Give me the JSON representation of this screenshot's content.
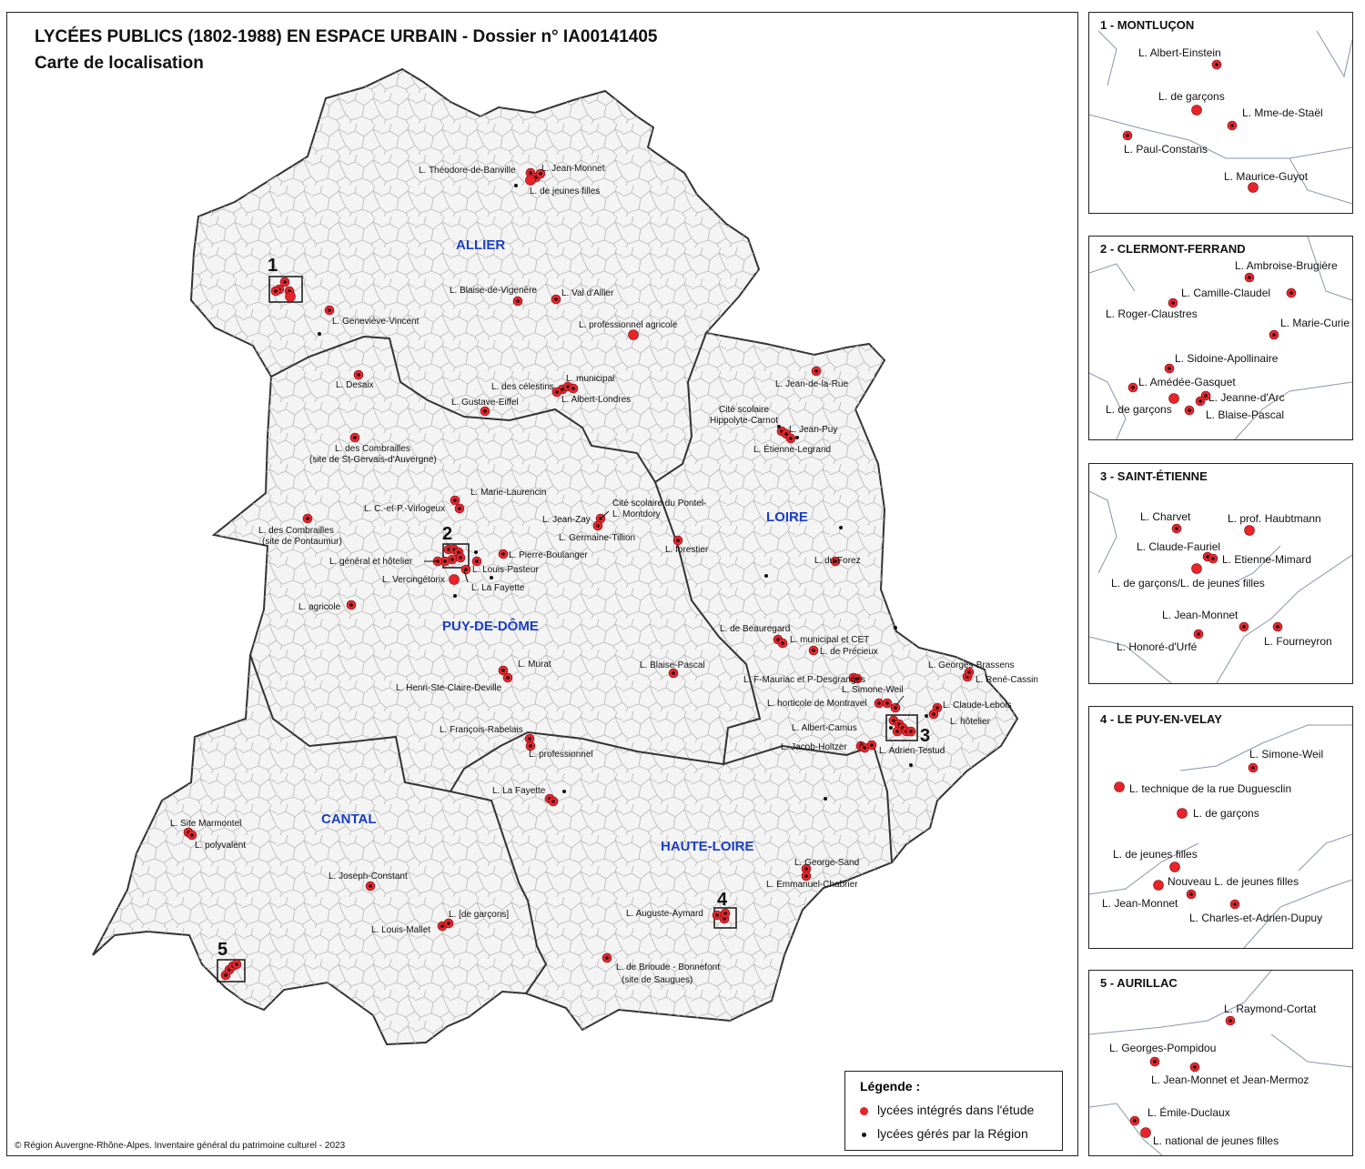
{
  "title": "LYCÉES PUBLICS (1802-1988) EN ESPACE URBAIN - Dossier n° IA00141405",
  "subtitle": "Carte de localisation",
  "colors": {
    "study_lycee": "#e8242a",
    "region_lycee": "#111111",
    "department_label": "#1b3fc4",
    "commune_border": "#b9b9b9",
    "department_border": "#333333"
  },
  "departments": [
    "ALLIER",
    "PUY-DE-DÔME",
    "LOIRE",
    "CANTAL",
    "HAUTE-LOIRE"
  ],
  "inset_markers": [
    "1",
    "2",
    "3",
    "4",
    "5"
  ],
  "map_labels": [
    "L. Théodore-de-Banville",
    "L. Jean-Monnet",
    "L. de jeunes filles",
    "L. Blaise-de-Vigenère",
    "L. Val d'Allier",
    "L. professionnel agricole",
    "L. Geneviève-Vincent",
    "L. Desaix",
    "L. des célestins",
    "L. municipal",
    "L. Albert-Londres",
    "L. Gustave-Eiffel",
    "L. des Combrailles",
    "(site de St-Gervais-d'Auvergne)",
    "L. Marie-Laurencin",
    "L. C.-et-P.-Virlogeux",
    "L. des Combrailles",
    "(site de Pontaumur)",
    "L. général et hôtelier",
    "L. Pierre-Boulanger",
    "L. Louis-Pasteur",
    "L. Vercingétorix",
    "L. La Fayette",
    "L. agricole",
    "Cité scolaire du Pontel-",
    "L. Jean-Zay",
    "L. Montdory",
    "L. Germaine-Tillion",
    "L. forestier",
    "L. Jean-de-la-Rue",
    "Cité scolaire",
    "Hippolyte-Carnot",
    "L. Jean-Puy",
    "L. Étienne-Legrand",
    "L. du Forez",
    "L. de Beauregard",
    "L. municipal et CET",
    "L. de Précieux",
    "L. Murat",
    "L. Henri-Ste-Claire-Deville",
    "L. Blaise-Pascal",
    "L. F-Mauriac et P-Desgranges",
    "L. Georges-Brassens",
    "L. René-Cassin",
    "L. Simone-Weil",
    "L. horticole de Montravel",
    "L. Claude-Lebois",
    "L. hôtelier",
    "L. Albert-Camus",
    "L. Jacob-Holtzer",
    "L. Adrien-Testud",
    "L. François-Rabelais",
    "L. professionnel",
    "L. La Fayette",
    "L. Site Marmontel",
    "L. polyvalent",
    "L. Joseph-Constant",
    "L. [de garçons]",
    "L. Louis-Mallet",
    "L. George-Sand",
    "L. Emmanuel-Chabrier",
    "L. Auguste-Aymard",
    "L. de Brioude - Bonnefont",
    "(site de Saugues)"
  ],
  "insets": [
    {
      "title": "1 - MONTLUÇON",
      "labels": [
        "L. Albert-Einstein",
        "L. de garçons",
        "L. Mme-de-Staël",
        "L. Paul-Constans",
        "L. Maurice-Guyot"
      ]
    },
    {
      "title": "2 - CLERMONT-FERRAND",
      "labels": [
        "L. Ambroise-Brugière",
        "L. Camille-Claudel",
        "L. Roger-Claustres",
        "L. Marie-Curie",
        "L. Sidoine-Apollinaire",
        "L. Amédée-Gasquet",
        "L. Jeanne-d'Arc",
        "L. de garçons",
        "L. Blaise-Pascal"
      ]
    },
    {
      "title": "3 - SAINT-ÉTIENNE",
      "labels": [
        "L. Charvet",
        "L. prof. Haubtmann",
        "L. Claude-Fauriel",
        "L. Etienne-Mimard",
        "L. de garçons/L. de jeunes filles",
        "L. Jean-Monnet",
        "L. Fourneyron",
        "L. Honoré-d'Urfé"
      ]
    },
    {
      "title": "4 - LE PUY-EN-VELAY",
      "labels": [
        "L. Simone-Weil",
        "L. technique de la rue Duguesclin",
        "L. de garçons",
        "L. de jeunes filles",
        "Nouveau L. de jeunes filles",
        "L. Jean-Monnet",
        "L. Charles-et-Adrien-Dupuy"
      ]
    },
    {
      "title": "5 - AURILLAC",
      "labels": [
        "L. Raymond-Cortat",
        "L. Georges-Pompidou",
        "L. Jean-Monnet et Jean-Mermoz",
        "L. Émile-Duclaux",
        "L. national de jeunes filles"
      ]
    }
  ],
  "legend": {
    "title": "Légende :",
    "item_study": "lycées intégrés dans l'étude",
    "item_region": "lycées gérés par la Région"
  },
  "copyright": "© Région Auvergne-Rhône-Alpes. Inventaire général du patrimoine culturel - 2023"
}
